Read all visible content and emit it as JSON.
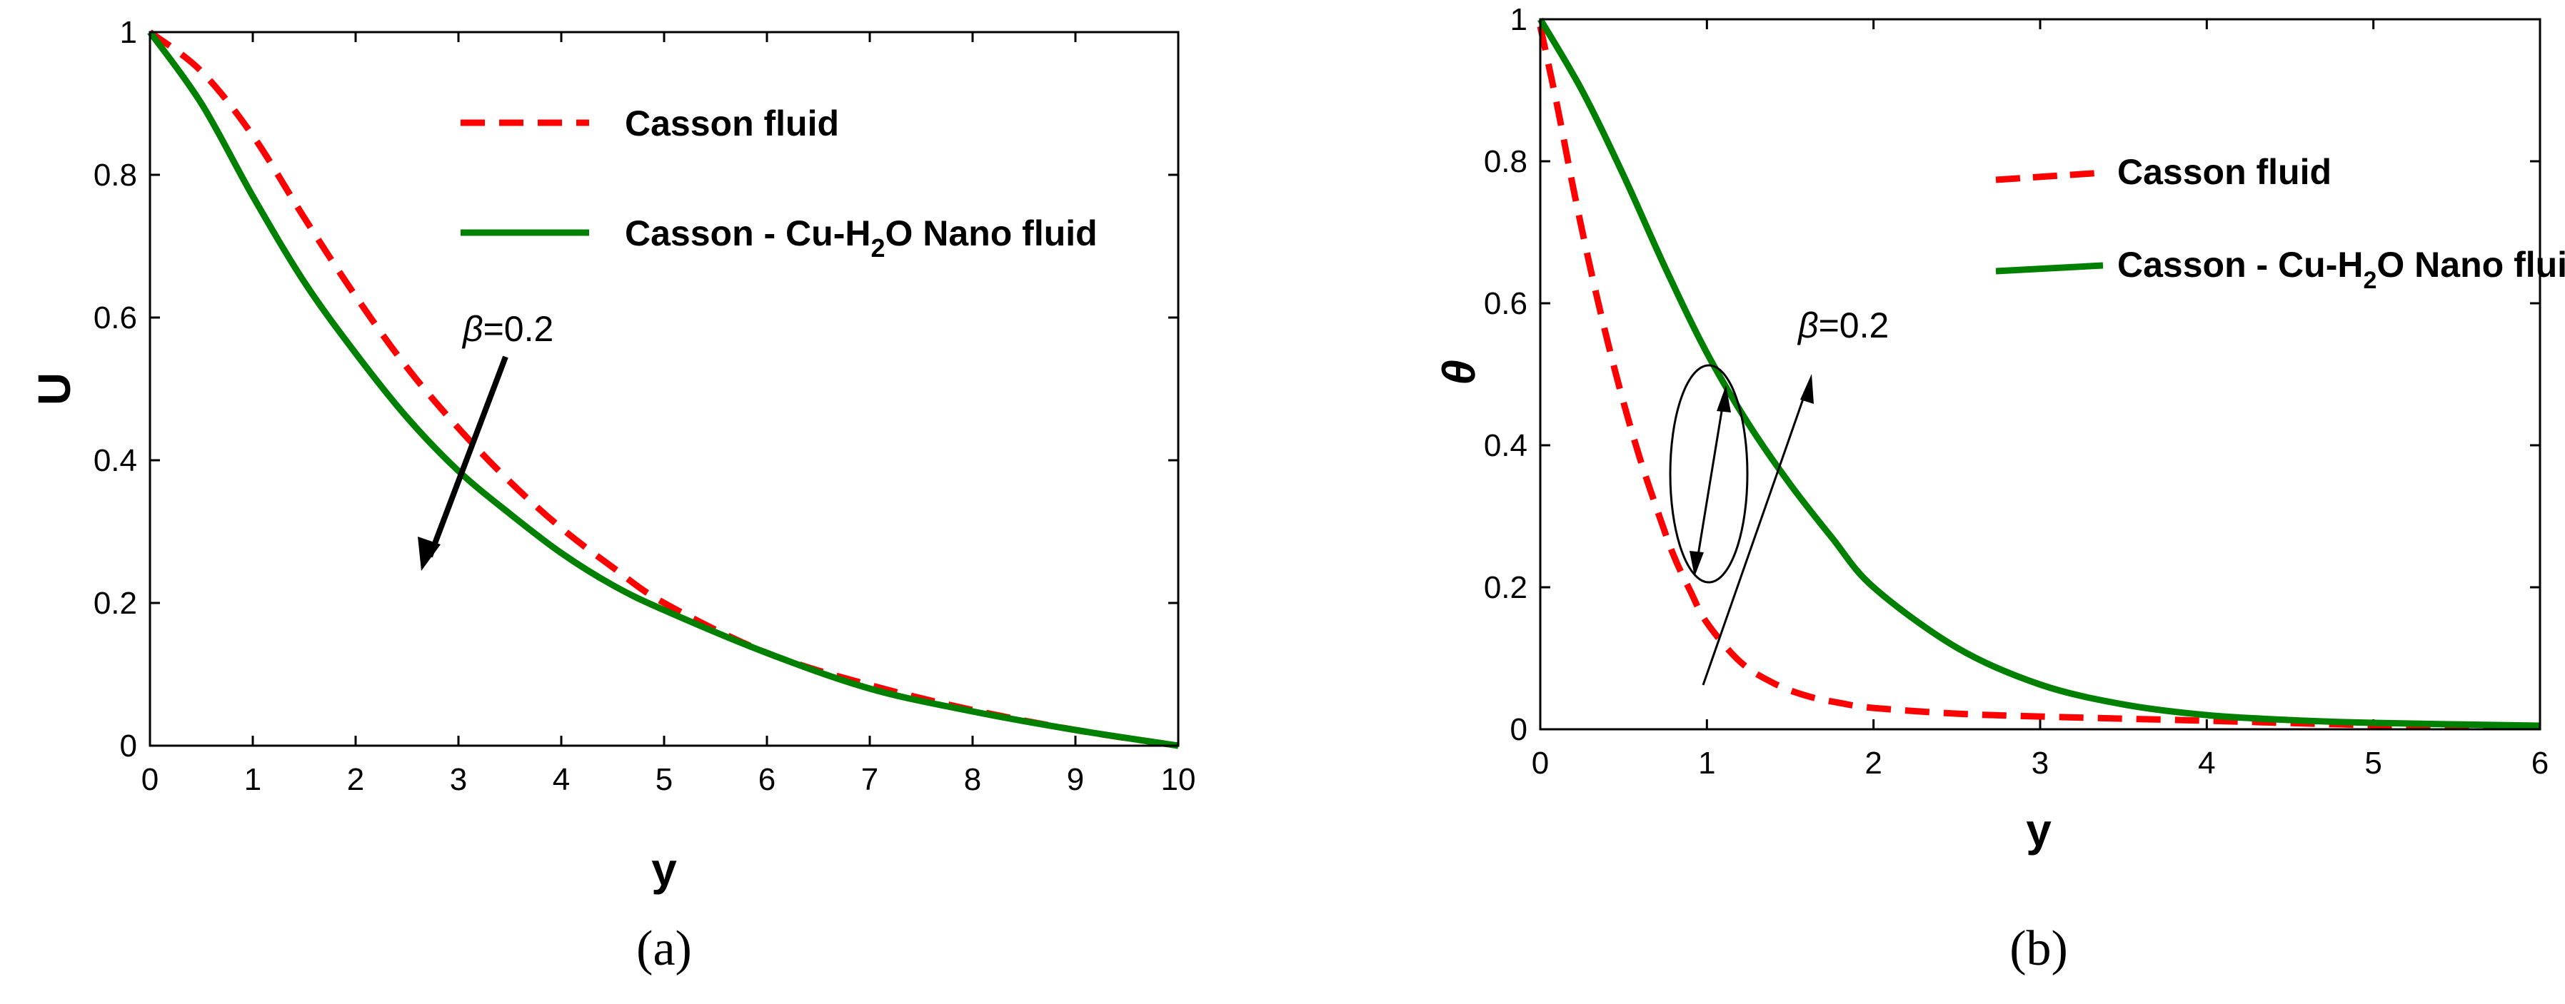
{
  "chart_data": [
    {
      "type": "line",
      "panel_label": "(a)",
      "xlabel": "y",
      "ylabel": "U",
      "xlim": [
        0,
        10
      ],
      "ylim": [
        0,
        1
      ],
      "xticks": [
        "0",
        "1",
        "2",
        "3",
        "4",
        "5",
        "6",
        "7",
        "8",
        "9",
        "10"
      ],
      "yticks": [
        "0",
        "0.2",
        "0.4",
        "0.6",
        "0.8",
        "1"
      ],
      "grid": false,
      "legend_position": "top-center",
      "annotation": {
        "symbol": "β",
        "text": "=0.2"
      },
      "series": [
        {
          "name": "Casson fluid",
          "color": "#ff0000",
          "style": "dashed",
          "x": [
            0,
            0.5,
            1,
            1.5,
            2,
            2.5,
            3,
            3.5,
            4,
            4.5,
            5,
            6,
            7,
            8,
            9,
            10
          ],
          "y": [
            1,
            0.945,
            0.855,
            0.74,
            0.63,
            0.53,
            0.445,
            0.37,
            0.305,
            0.25,
            0.2,
            0.13,
            0.085,
            0.05,
            0.022,
            0
          ]
        },
        {
          "name_prefix": "Casson - Cu-H",
          "name_sub": "2",
          "name_suffix": "O Nano fluid",
          "color": "#008000",
          "style": "solid",
          "x": [
            0,
            0.5,
            1,
            1.5,
            2,
            2.5,
            3,
            3.5,
            4,
            4.5,
            5,
            6,
            7,
            8,
            9,
            10
          ],
          "y": [
            1,
            0.9,
            0.77,
            0.65,
            0.55,
            0.46,
            0.385,
            0.325,
            0.27,
            0.225,
            0.19,
            0.13,
            0.08,
            0.048,
            0.022,
            0
          ]
        }
      ]
    },
    {
      "type": "line",
      "panel_label": "(b)",
      "xlabel": "y",
      "ylabel": "θ",
      "xlim": [
        0,
        6
      ],
      "ylim": [
        0,
        1
      ],
      "xticks": [
        "0",
        "1",
        "2",
        "3",
        "4",
        "5",
        "6"
      ],
      "yticks": [
        "0",
        "0.2",
        "0.4",
        "0.6",
        "0.8",
        "1"
      ],
      "grid": false,
      "legend_position": "top-right",
      "annotation": {
        "symbol": "β",
        "text": "=0.2"
      },
      "series": [
        {
          "name": "Casson fluid",
          "color": "#ff0000",
          "style": "dashed",
          "x": [
            0,
            0.1,
            0.2,
            0.3,
            0.4,
            0.5,
            0.6,
            0.7,
            0.8,
            0.9,
            1.0,
            1.2,
            1.4,
            1.6,
            1.8,
            2.0,
            2.5,
            3,
            4,
            5,
            6
          ],
          "y": [
            0.99,
            0.88,
            0.76,
            0.65,
            0.55,
            0.46,
            0.38,
            0.31,
            0.245,
            0.195,
            0.15,
            0.095,
            0.065,
            0.047,
            0.037,
            0.03,
            0.022,
            0.018,
            0.012,
            0.006,
            0.004
          ]
        },
        {
          "name_prefix": "Casson - Cu-H",
          "name_sub": "2",
          "name_suffix": "O  Nano fluid",
          "color": "#008000",
          "style": "solid",
          "x": [
            0,
            0.25,
            0.5,
            0.75,
            1.0,
            1.25,
            1.5,
            1.75,
            2.0,
            2.5,
            3.0,
            3.5,
            4.0,
            4.5,
            5.0,
            6.0
          ],
          "y": [
            1,
            0.9,
            0.78,
            0.65,
            0.53,
            0.43,
            0.345,
            0.27,
            0.2,
            0.115,
            0.063,
            0.035,
            0.02,
            0.013,
            0.009,
            0.005
          ]
        }
      ]
    }
  ]
}
